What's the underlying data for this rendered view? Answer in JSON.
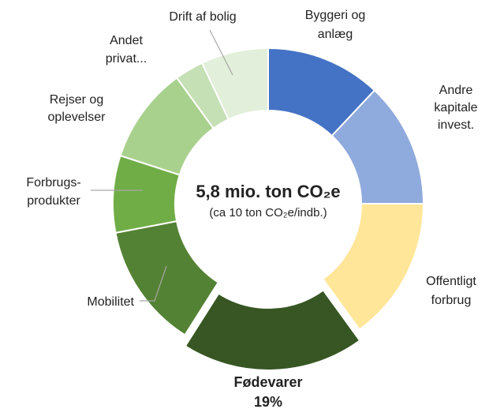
{
  "chart_data": {
    "type": "donut",
    "title": "5,8 mio. ton CO₂e",
    "subtitle": "(ca 10 ton CO₂e/indb.)",
    "categories": [
      [
        "Byggeri og",
        "anlæg"
      ],
      [
        "Andre",
        "kapitale",
        "invest."
      ],
      [
        "Offentligt",
        "forbrug"
      ],
      [
        "Fødevarer"
      ],
      [
        "Mobilitet"
      ],
      [
        "Forbrugs-",
        "produkter"
      ],
      [
        "Rejser og",
        "oplevelser"
      ],
      [
        "Andet",
        "privat..."
      ],
      [
        "Drift af bolig"
      ]
    ],
    "values": [
      12,
      13,
      15,
      19,
      13,
      8,
      10,
      3,
      7
    ],
    "value_labels": [
      null,
      null,
      null,
      "19%",
      null,
      null,
      null,
      null,
      null
    ],
    "colors": [
      "#4472c4",
      "#8faadc",
      "#ffe699",
      "#375623",
      "#548235",
      "#70ad47",
      "#a9d18e",
      "#c5e0b4",
      "#e2efda"
    ],
    "exploded": [
      3
    ]
  }
}
